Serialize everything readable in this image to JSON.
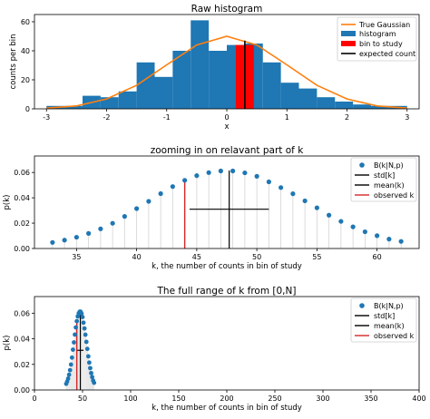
{
  "colors": {
    "hist": "#1f77b4",
    "gauss": "#ff7f0e",
    "study": "#ff0000",
    "black": "#000000",
    "obs": "#d62728",
    "stem": "#d3d3d3"
  },
  "chart_data": [
    {
      "id": "c1",
      "type": "bar",
      "title": "Raw histogram",
      "xlabel": "x",
      "ylabel": "counts per bin",
      "xlim": [
        -3.2,
        3.2
      ],
      "ylim": [
        0,
        65
      ],
      "xticks": [
        -3,
        -2,
        -1,
        0,
        1,
        2,
        3
      ],
      "yticks": [
        0,
        20,
        40,
        60
      ],
      "bin_width": 0.3,
      "bins_left": [
        -3.0,
        -2.7,
        -2.4,
        -2.1,
        -1.8,
        -1.5,
        -1.2,
        -0.9,
        -0.6,
        -0.3,
        0.0,
        0.3,
        0.6,
        0.9,
        1.2,
        1.5,
        1.8,
        2.1,
        2.4,
        2.7
      ],
      "counts": [
        2,
        2,
        9,
        8,
        12,
        32,
        22,
        40,
        61,
        40,
        44,
        45,
        32,
        18,
        14,
        8,
        5,
        3,
        2,
        2
      ],
      "study_bin": {
        "left": 0.15,
        "width": 0.3,
        "value": 44
      },
      "expected_count": {
        "x": 0.3,
        "value": 47
      },
      "gaussian": {
        "x": [
          -3.0,
          -2.5,
          -2.0,
          -1.5,
          -1.0,
          -0.5,
          0.0,
          0.5,
          1.0,
          1.5,
          2.0,
          2.5,
          3.0
        ],
        "y": [
          0.5,
          2.0,
          6.8,
          16.2,
          30.3,
          44.0,
          50.0,
          44.0,
          30.3,
          16.2,
          6.8,
          2.0,
          0.5
        ]
      },
      "legend": [
        "True Gaussian",
        "histogram",
        "bin to study",
        "expected count"
      ],
      "legend_loc": "upper right",
      "grid": false
    },
    {
      "id": "c2",
      "type": "scatter",
      "title": "zooming in on relavant part of k",
      "xlabel": "k, the number of counts in bin of study",
      "ylabel": "p(k)",
      "xlim": [
        31.5,
        63.5
      ],
      "ylim": [
        0,
        0.073
      ],
      "xticks": [
        35,
        40,
        45,
        50,
        55,
        60
      ],
      "yticks": [
        0.0,
        0.02,
        0.04,
        0.06
      ],
      "ytick_labels": [
        "0.00",
        "0.02",
        "0.04",
        "0.06"
      ],
      "k": [
        33,
        34,
        35,
        36,
        37,
        38,
        39,
        40,
        41,
        42,
        43,
        44,
        45,
        46,
        47,
        48,
        49,
        50,
        51,
        52,
        53,
        54,
        55,
        56,
        57,
        58,
        59,
        60,
        61,
        62
      ],
      "p": [
        0.0048,
        0.0066,
        0.0089,
        0.0119,
        0.0155,
        0.0199,
        0.0253,
        0.0315,
        0.0372,
        0.0433,
        0.0489,
        0.0538,
        0.0575,
        0.0599,
        0.0612,
        0.0612,
        0.0597,
        0.057,
        0.0526,
        0.0481,
        0.0432,
        0.0376,
        0.0321,
        0.0263,
        0.0214,
        0.0171,
        0.0132,
        0.0101,
        0.0074,
        0.0056
      ],
      "mean": {
        "x": 47.7,
        "ymax": 0.0615
      },
      "std": {
        "x0": 44.4,
        "x1": 51.0,
        "y": 0.031
      },
      "observed": {
        "x": 44,
        "ymax": 0.0538
      },
      "legend": [
        "B(k|N,p)",
        "std[k]",
        "mean(k)",
        "observed k"
      ],
      "legend_loc": "upper right",
      "grid": false
    },
    {
      "id": "c3",
      "type": "scatter",
      "title": "The full range of k from [0,N]",
      "xlabel": "k, the number of counts in bin of study",
      "ylabel": "p(k)",
      "xlim": [
        0,
        400
      ],
      "ylim": [
        0,
        0.073
      ],
      "xticks": [
        0,
        50,
        100,
        150,
        200,
        250,
        300,
        350,
        400
      ],
      "yticks": [
        0.0,
        0.02,
        0.04,
        0.06
      ],
      "ytick_labels": [
        "0.00",
        "0.02",
        "0.04",
        "0.06"
      ],
      "mean": {
        "x": 47.7,
        "ymax": 0.0615
      },
      "std": {
        "x0": 44.4,
        "x1": 51.0,
        "y": 0.031
      },
      "observed": {
        "x": 44,
        "ymax": 0.0538
      },
      "legend": [
        "B(k|N,p)",
        "std[k]",
        "mean(k)",
        "observed k"
      ],
      "legend_loc": "upper right",
      "grid": false
    }
  ]
}
